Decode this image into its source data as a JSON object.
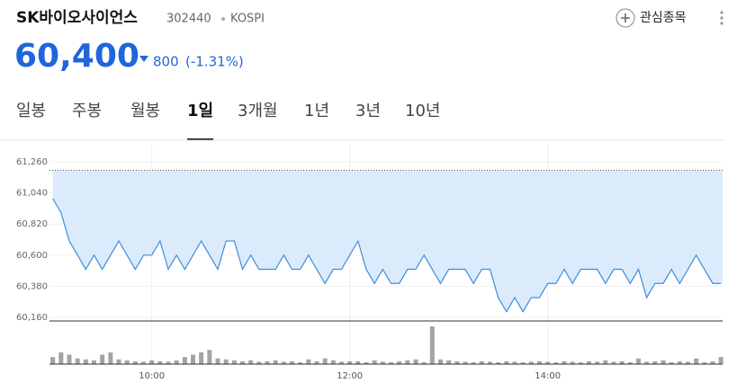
{
  "header": {
    "title": "SK바이오사이언스",
    "code": "302440",
    "market": "KOSPI",
    "watch_button": "관심종목",
    "price": "60,400",
    "change": "800",
    "change_percent": "(-1.31%)"
  },
  "tabs": {
    "items": [
      "일봉",
      "주봉",
      "월봉",
      "1일",
      "3개월",
      "1년",
      "3년",
      "10년"
    ],
    "active": 3
  },
  "chart_data": {
    "type": "line",
    "color": "#3b8ede",
    "fill_color": "#dcebfb",
    "volume_color": "#a3a3a3",
    "previous_close": 61200,
    "x": [
      540,
      545,
      550,
      555,
      560,
      565,
      570,
      575,
      580,
      585,
      590,
      595,
      600,
      605,
      610,
      615,
      620,
      625,
      630,
      635,
      640,
      645,
      650,
      655,
      660,
      665,
      670,
      675,
      680,
      685,
      690,
      695,
      700,
      705,
      710,
      715,
      720,
      725,
      730,
      735,
      740,
      745,
      750,
      755,
      760,
      765,
      770,
      775,
      780,
      785,
      790,
      795,
      800,
      805,
      810,
      815,
      820,
      825,
      830,
      835,
      840,
      845,
      850,
      855,
      860,
      865,
      870,
      875,
      880,
      885,
      890,
      895,
      900,
      905,
      910,
      915,
      920,
      925,
      930,
      935,
      940,
      945
    ],
    "values": [
      61000,
      60900,
      60700,
      60600,
      60500,
      60600,
      60500,
      60600,
      60700,
      60600,
      60500,
      60600,
      60600,
      60700,
      60500,
      60600,
      60500,
      60600,
      60700,
      60600,
      60500,
      60700,
      60700,
      60500,
      60600,
      60500,
      60500,
      60500,
      60600,
      60500,
      60500,
      60600,
      60500,
      60400,
      60500,
      60500,
      60600,
      60700,
      60500,
      60400,
      60500,
      60400,
      60400,
      60500,
      60500,
      60600,
      60500,
      60400,
      60500,
      60500,
      60500,
      60400,
      60500,
      60500,
      60300,
      60200,
      60300,
      60200,
      60300,
      60300,
      60400,
      60400,
      60500,
      60400,
      60500,
      60500,
      60500,
      60400,
      60500,
      60500,
      60400,
      60500,
      60300,
      60400,
      60400,
      60500,
      60400,
      60500,
      60600,
      60500,
      60400,
      60400
    ],
    "volume": [
      15,
      25,
      20,
      12,
      10,
      8,
      20,
      25,
      10,
      8,
      6,
      5,
      8,
      6,
      5,
      8,
      15,
      20,
      25,
      30,
      12,
      10,
      8,
      6,
      8,
      5,
      6,
      8,
      5,
      6,
      4,
      10,
      6,
      12,
      8,
      5,
      6,
      6,
      4,
      8,
      5,
      4,
      6,
      8,
      10,
      4,
      80,
      10,
      8,
      6,
      5,
      4,
      6,
      5,
      4,
      6,
      5,
      4,
      5,
      6,
      5,
      4,
      6,
      5,
      4,
      6,
      5,
      8,
      5,
      6,
      4,
      12,
      5,
      6,
      8,
      4,
      6,
      5,
      12,
      4,
      6,
      15
    ],
    "xlim": [
      538,
      946
    ],
    "ylim": [
      60160,
      61260
    ],
    "yticks": [
      {
        "value": 60160,
        "label": "60,160"
      },
      {
        "value": 60380,
        "label": "60,380"
      },
      {
        "value": 60600,
        "label": "60,600"
      },
      {
        "value": 60820,
        "label": "60,820"
      },
      {
        "value": 61040,
        "label": "61,040"
      },
      {
        "value": 61260,
        "label": "61,260"
      }
    ],
    "xticks": [
      {
        "value": 600,
        "label": "10:00"
      },
      {
        "value": 720,
        "label": "12:00"
      },
      {
        "value": 840,
        "label": "14:00"
      }
    ],
    "grid": true
  }
}
